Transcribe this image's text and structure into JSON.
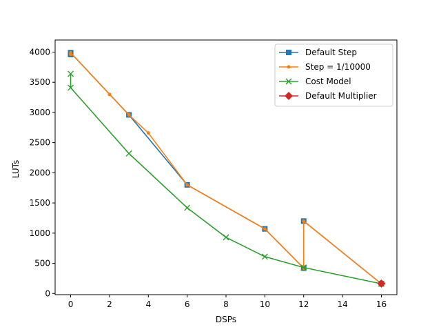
{
  "chart_data": {
    "type": "line",
    "xlabel": "DSPs",
    "ylabel": "LUTs",
    "xlim": [
      -0.8,
      16.8
    ],
    "ylim": [
      -20,
      4200
    ],
    "xticks": [
      0,
      2,
      4,
      6,
      8,
      10,
      12,
      14,
      16
    ],
    "yticks": [
      0,
      500,
      1000,
      1500,
      2000,
      2500,
      3000,
      3500,
      4000
    ],
    "grid": false,
    "legend_position": "top-right",
    "series": [
      {
        "name": "Default Step",
        "color": "#1f77b4",
        "marker": "square",
        "x": [
          0,
          0,
          3,
          6,
          10,
          12,
          12,
          16
        ],
        "y": [
          3960,
          3990,
          2960,
          1800,
          1070,
          420,
          1200,
          160
        ]
      },
      {
        "name": "Step = 1/10000",
        "color": "#ff7f0e",
        "marker": "point",
        "x": [
          0,
          0,
          2,
          3,
          4,
          6,
          10,
          12,
          12,
          16
        ],
        "y": [
          3960,
          3990,
          3300,
          2960,
          2660,
          1800,
          1070,
          420,
          1200,
          160
        ]
      },
      {
        "name": "Cost Model",
        "color": "#2ca02c",
        "marker": "x",
        "x": [
          0,
          0,
          3,
          6,
          8,
          10,
          12,
          16
        ],
        "y": [
          3640,
          3410,
          2320,
          1420,
          930,
          610,
          430,
          160
        ]
      },
      {
        "name": "Default Multiplier",
        "color": "#d62728",
        "marker": "diamond",
        "x": [
          16
        ],
        "y": [
          165
        ]
      }
    ]
  }
}
